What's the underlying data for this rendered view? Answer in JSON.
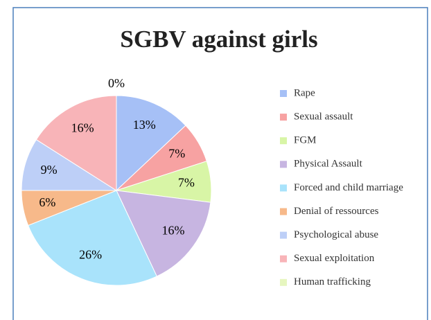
{
  "chart_data": {
    "type": "pie",
    "title": "SGBV against girls",
    "categories": [
      "Rape",
      "Sexual assault",
      "FGM",
      "Physical Assault",
      "Forced and child marriage",
      "Denial of ressources",
      "Psychological abuse",
      "Sexual exploitation",
      "Human trafficking"
    ],
    "values": [
      13,
      7,
      7,
      16,
      26,
      6,
      9,
      16,
      0
    ],
    "value_labels": [
      "13%",
      "7%",
      "7%",
      "16%",
      "26%",
      "6%",
      "9%",
      "16%",
      "0%"
    ],
    "colors": [
      "#a6c0f6",
      "#f7a2a2",
      "#d8f5a6",
      "#c7b5e1",
      "#a9e3fb",
      "#f7b98a",
      "#bdcff7",
      "#f8b4b8",
      "#e6f6bf"
    ],
    "legend": "right"
  }
}
